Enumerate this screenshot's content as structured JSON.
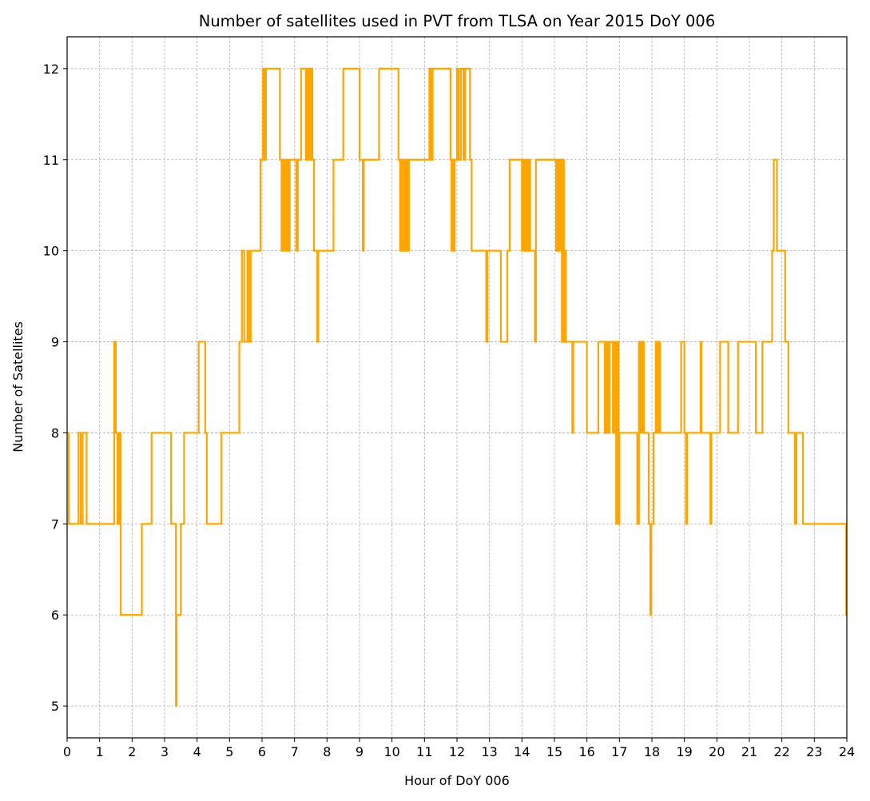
{
  "chart_data": {
    "type": "line",
    "title": "Number of satellites used in PVT from TLSA on Year 2015 DoY 006",
    "xlabel": "Hour of DoY 006",
    "ylabel": "Number of Satellites",
    "xlim": [
      0,
      24
    ],
    "ylim": [
      4.65,
      12.35
    ],
    "xticks": [
      "0",
      "1",
      "2",
      "3",
      "4",
      "5",
      "6",
      "7",
      "8",
      "9",
      "10",
      "11",
      "12",
      "13",
      "14",
      "15",
      "16",
      "17",
      "18",
      "19",
      "20",
      "21",
      "22",
      "23",
      "24"
    ],
    "yticks": [
      "5",
      "6",
      "7",
      "8",
      "9",
      "10",
      "11",
      "12"
    ],
    "grid": true,
    "line_style": "step",
    "series": [
      {
        "color": "#ffa500",
        "points": [
          [
            0,
            8
          ],
          [
            0.05,
            7
          ],
          [
            0.35,
            8
          ],
          [
            0.42,
            7
          ],
          [
            0.48,
            8
          ],
          [
            0.58,
            8
          ],
          [
            0.6,
            7
          ],
          [
            1.45,
            9
          ],
          [
            1.5,
            8
          ],
          [
            1.55,
            7
          ],
          [
            1.6,
            8
          ],
          [
            1.65,
            6
          ],
          [
            2.3,
            7
          ],
          [
            2.6,
            8
          ],
          [
            3.2,
            7
          ],
          [
            3.35,
            5
          ],
          [
            3.37,
            6
          ],
          [
            3.5,
            7
          ],
          [
            3.6,
            8
          ],
          [
            4.05,
            9
          ],
          [
            4.25,
            8
          ],
          [
            4.3,
            7
          ],
          [
            4.75,
            8
          ],
          [
            5.3,
            9
          ],
          [
            5.38,
            10
          ],
          [
            5.45,
            9
          ],
          [
            5.55,
            10
          ],
          [
            5.6,
            9
          ],
          [
            5.65,
            10
          ],
          [
            5.95,
            11
          ],
          [
            6.03,
            12
          ],
          [
            6.08,
            11
          ],
          [
            6.12,
            12
          ],
          [
            6.55,
            11
          ],
          [
            6.6,
            10
          ],
          [
            6.63,
            11
          ],
          [
            6.66,
            10
          ],
          [
            6.7,
            11
          ],
          [
            6.73,
            10
          ],
          [
            6.77,
            11
          ],
          [
            6.8,
            10
          ],
          [
            6.85,
            11
          ],
          [
            7.05,
            10
          ],
          [
            7.1,
            11
          ],
          [
            7.2,
            12
          ],
          [
            7.35,
            11
          ],
          [
            7.4,
            12
          ],
          [
            7.45,
            11
          ],
          [
            7.5,
            12
          ],
          [
            7.55,
            11
          ],
          [
            7.6,
            10
          ],
          [
            7.7,
            9
          ],
          [
            7.73,
            10
          ],
          [
            8.2,
            11
          ],
          [
            8.5,
            12
          ],
          [
            9.0,
            11
          ],
          [
            9.1,
            10
          ],
          [
            9.13,
            11
          ],
          [
            9.6,
            12
          ],
          [
            10.2,
            11
          ],
          [
            10.25,
            10
          ],
          [
            10.28,
            11
          ],
          [
            10.32,
            10
          ],
          [
            10.36,
            11
          ],
          [
            10.4,
            10
          ],
          [
            10.44,
            11
          ],
          [
            10.48,
            10
          ],
          [
            10.52,
            11
          ],
          [
            11.15,
            12
          ],
          [
            11.2,
            11
          ],
          [
            11.25,
            12
          ],
          [
            11.8,
            11
          ],
          [
            11.83,
            10
          ],
          [
            11.86,
            11
          ],
          [
            11.9,
            10
          ],
          [
            11.93,
            11
          ],
          [
            12.0,
            12
          ],
          [
            12.05,
            11
          ],
          [
            12.12,
            12
          ],
          [
            12.2,
            11
          ],
          [
            12.25,
            12
          ],
          [
            12.4,
            11
          ],
          [
            12.45,
            10
          ],
          [
            12.9,
            9
          ],
          [
            12.93,
            10
          ],
          [
            13.35,
            9
          ],
          [
            13.55,
            10
          ],
          [
            13.62,
            11
          ],
          [
            14.0,
            10
          ],
          [
            14.05,
            11
          ],
          [
            14.08,
            10
          ],
          [
            14.12,
            11
          ],
          [
            14.16,
            10
          ],
          [
            14.2,
            11
          ],
          [
            14.25,
            10
          ],
          [
            14.4,
            9
          ],
          [
            14.43,
            11
          ],
          [
            15.05,
            10
          ],
          [
            15.08,
            11
          ],
          [
            15.11,
            10
          ],
          [
            15.14,
            11
          ],
          [
            15.17,
            10
          ],
          [
            15.2,
            11
          ],
          [
            15.23,
            9
          ],
          [
            15.26,
            11
          ],
          [
            15.29,
            9
          ],
          [
            15.32,
            10
          ],
          [
            15.35,
            9
          ],
          [
            15.55,
            8
          ],
          [
            15.58,
            9
          ],
          [
            16.0,
            8
          ],
          [
            16.35,
            9
          ],
          [
            16.55,
            8
          ],
          [
            16.6,
            9
          ],
          [
            16.65,
            8
          ],
          [
            16.7,
            9
          ],
          [
            16.8,
            8
          ],
          [
            16.85,
            9
          ],
          [
            16.9,
            7
          ],
          [
            16.93,
            9
          ],
          [
            16.97,
            7
          ],
          [
            17.0,
            8
          ],
          [
            17.55,
            7
          ],
          [
            17.6,
            9
          ],
          [
            17.65,
            8
          ],
          [
            17.7,
            9
          ],
          [
            17.75,
            8
          ],
          [
            17.9,
            7
          ],
          [
            17.95,
            6
          ],
          [
            17.98,
            7
          ],
          [
            18.05,
            8
          ],
          [
            18.12,
            9
          ],
          [
            18.16,
            8
          ],
          [
            18.2,
            9
          ],
          [
            18.25,
            8
          ],
          [
            18.9,
            9
          ],
          [
            19.0,
            8
          ],
          [
            19.05,
            7
          ],
          [
            19.08,
            8
          ],
          [
            19.5,
            9
          ],
          [
            19.52,
            8
          ],
          [
            19.8,
            7
          ],
          [
            19.83,
            8
          ],
          [
            20.1,
            9
          ],
          [
            20.35,
            8
          ],
          [
            20.65,
            9
          ],
          [
            21.2,
            8
          ],
          [
            21.4,
            9
          ],
          [
            21.7,
            10
          ],
          [
            21.75,
            11
          ],
          [
            21.85,
            10
          ],
          [
            22.1,
            9
          ],
          [
            22.2,
            8
          ],
          [
            22.4,
            7
          ],
          [
            22.45,
            8
          ],
          [
            22.65,
            7
          ],
          [
            23.98,
            6
          ]
        ],
        "end_x": 24
      }
    ]
  }
}
